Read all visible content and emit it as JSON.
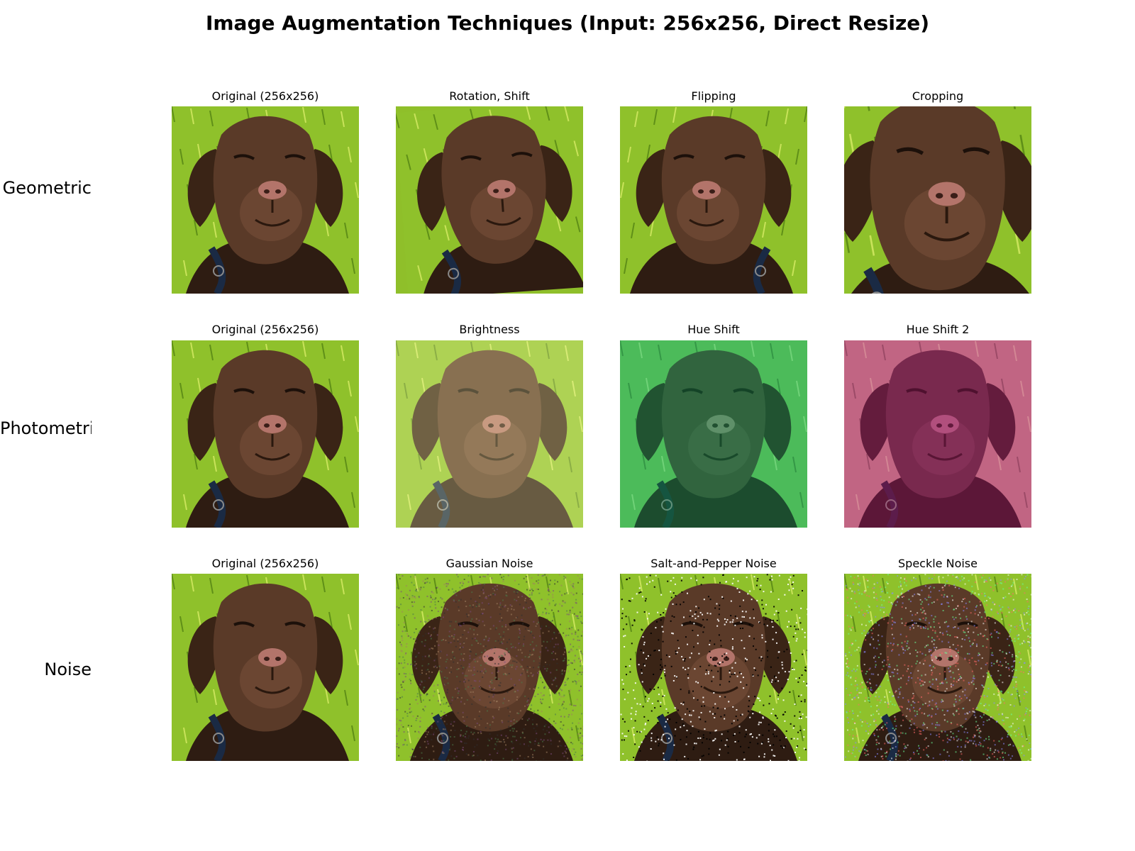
{
  "title": "Image Augmentation Techniques (Input: 256x256, Direct Resize)",
  "rows": [
    {
      "label": "Geometric",
      "panels": [
        {
          "title": "Original (256x256)",
          "variant": "original"
        },
        {
          "title": "Rotation, Shift",
          "variant": "rotation-shift"
        },
        {
          "title": "Flipping",
          "variant": "flip"
        },
        {
          "title": "Cropping",
          "variant": "crop"
        }
      ]
    },
    {
      "label": "Photometric",
      "panels": [
        {
          "title": "Original (256x256)",
          "variant": "original"
        },
        {
          "title": "Brightness",
          "variant": "brightness"
        },
        {
          "title": "Hue Shift",
          "variant": "hue-green"
        },
        {
          "title": "Hue Shift 2",
          "variant": "hue-magenta"
        }
      ]
    },
    {
      "label": "Noise",
      "panels": [
        {
          "title": "Original (256x256)",
          "variant": "original"
        },
        {
          "title": "Gaussian Noise",
          "variant": "gaussian"
        },
        {
          "title": "Salt-and-Pepper Noise",
          "variant": "salt-pepper"
        },
        {
          "title": "Speckle Noise",
          "variant": "speckle"
        }
      ]
    }
  ]
}
